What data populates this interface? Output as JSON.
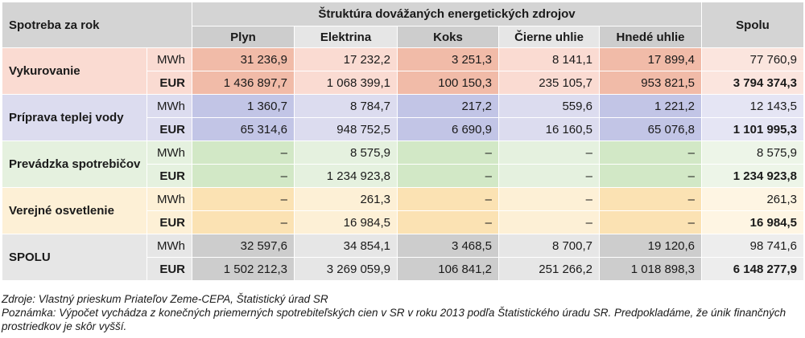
{
  "header": {
    "row_label": "Spotreba za rok",
    "group_label": "Štruktúra dovážaných energetických zdrojov",
    "fuels": [
      "Plyn",
      "Elektrina",
      "Koks",
      "Čierne uhlie",
      "Hnedé uhlie"
    ],
    "total_label": "Spolu"
  },
  "sections": [
    {
      "label": "Vykurovanie",
      "rows": [
        {
          "unit": "MWh",
          "values": [
            "31 236,9",
            "17 232,2",
            "3 251,3",
            "8 141,1",
            "17 899,4"
          ],
          "total": "77 760,9"
        },
        {
          "unit": "EUR",
          "values": [
            "1 436 897,7",
            "1 068 399,1",
            "100 150,3",
            "235 105,7",
            "953 821,5"
          ],
          "total": "3 794 374,3"
        }
      ]
    },
    {
      "label": "Príprava teplej vody",
      "rows": [
        {
          "unit": "MWh",
          "values": [
            "1 360,7",
            "8 784,7",
            "217,2",
            "559,6",
            "1 221,2"
          ],
          "total": "12 143,5"
        },
        {
          "unit": "EUR",
          "values": [
            "65 314,6",
            "948 752,5",
            "6 690,9",
            "16 160,5",
            "65 076,8"
          ],
          "total": "1 101 995,3"
        }
      ]
    },
    {
      "label": "Prevádzka spotrebičov",
      "rows": [
        {
          "unit": "MWh",
          "values": [
            "–",
            "8 575,9",
            "–",
            "–",
            "–"
          ],
          "total": "8 575,9"
        },
        {
          "unit": "EUR",
          "values": [
            "–",
            "1 234 923,8",
            "–",
            "–",
            "–"
          ],
          "total": "1 234 923,8"
        }
      ]
    },
    {
      "label": "Verejné osvetlenie",
      "rows": [
        {
          "unit": "MWh",
          "values": [
            "–",
            "261,3",
            "–",
            "–",
            "–"
          ],
          "total": "261,3"
        },
        {
          "unit": "EUR",
          "values": [
            "–",
            "16 984,5",
            "–",
            "–",
            "–"
          ],
          "total": "16 984,5"
        }
      ]
    },
    {
      "label": "SPOLU",
      "rows": [
        {
          "unit": "MWh",
          "values": [
            "32 597,6",
            "34 854,1",
            "3 468,5",
            "8 700,7",
            "19 120,6"
          ],
          "total": "98 741,6"
        },
        {
          "unit": "EUR",
          "values": [
            "1 502 212,3",
            "3 269 059,9",
            "106 841,2",
            "251 266,2",
            "1 018 898,3"
          ],
          "total": "6 148 277,9"
        }
      ]
    }
  ],
  "notes": {
    "source": "Zdroje: Vlastný prieskum Priateľov Zeme-CEPA, Štatistický úrad SR",
    "remark": "Poznámka: Výpočet vychádza z konečných priemerných spotrebiteľských cien v SR v roku 2013 podľa Štatistického úradu SR. Predpokladáme, že únik finančných prostriedkov je skôr vyšší."
  }
}
